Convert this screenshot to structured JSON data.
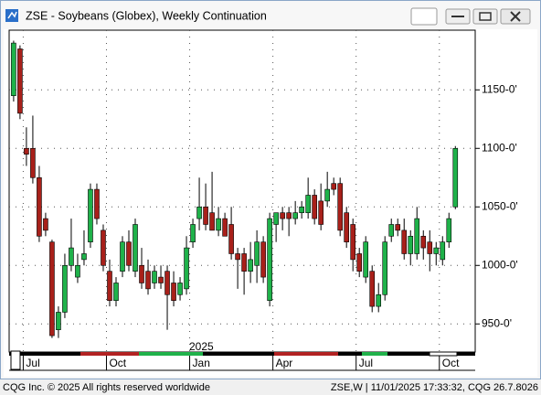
{
  "chart_data": {
    "type": "candlestick",
    "title": "ZSE - Soybeans (Globex), Weekly Continuation",
    "year_label": "2025",
    "footer_left": "CQG Inc. © 2025 All rights reserved worldwide",
    "footer_right": "ZSE,W | 11/01/2025 17:33:32, CQG 26.7.8026",
    "up_color": "#1fb24a",
    "down_color": "#a8201a",
    "open": [
      1145,
      1185,
      1100,
      1100,
      1075,
      1040,
      1020,
      945,
      960,
      1000,
      990,
      1005,
      1020,
      1065,
      1030,
      995,
      970,
      995,
      1020,
      995,
      1000,
      995,
      985,
      990,
      995,
      985,
      975,
      980,
      1020,
      1040,
      1050,
      1045,
      1030,
      1040,
      1035,
      1010,
      1010,
      995,
      1000,
      1020,
      970,
      1035,
      1045,
      1045,
      1040,
      1045,
      1045,
      1060,
      1055,
      1055,
      1070,
      1070,
      1045,
      1035,
      1010,
      990,
      995,
      965,
      975,
      1025,
      1035,
      1030,
      1010,
      1010,
      1025,
      1020,
      1010,
      1005,
      1020,
      1050
    ],
    "high": [
      1192,
      1188,
      1118,
      1128,
      1085,
      1045,
      1022,
      965,
      1010,
      1040,
      1010,
      1030,
      1070,
      1070,
      1035,
      1005,
      990,
      1025,
      1030,
      1040,
      1015,
      1005,
      1000,
      1000,
      1000,
      995,
      990,
      1025,
      1040,
      1075,
      1070,
      1080,
      1050,
      1045,
      1050,
      1015,
      1015,
      1020,
      1030,
      1025,
      1045,
      1045,
      1050,
      1050,
      1055,
      1055,
      1075,
      1065,
      1070,
      1080,
      1075,
      1075,
      1050,
      1040,
      1015,
      1025,
      1000,
      985,
      1025,
      1040,
      1040,
      1040,
      1030,
      1050,
      1030,
      1030,
      1020,
      1025,
      1045,
      1102
    ],
    "low": [
      1140,
      1125,
      1085,
      1070,
      1020,
      1025,
      938,
      938,
      955,
      995,
      985,
      1000,
      1015,
      1035,
      995,
      965,
      965,
      990,
      995,
      990,
      980,
      975,
      980,
      980,
      945,
      965,
      970,
      975,
      1015,
      1030,
      1030,
      1030,
      1025,
      1025,
      1005,
      980,
      975,
      985,
      985,
      985,
      965,
      1020,
      1030,
      1025,
      1035,
      1040,
      1040,
      1035,
      1030,
      1050,
      1060,
      1025,
      1015,
      995,
      990,
      985,
      960,
      960,
      970,
      1020,
      1025,
      1005,
      1000,
      1005,
      1005,
      995,
      1000,
      1000,
      1015,
      1048
    ],
    "close": [
      1190,
      1130,
      1095,
      1075,
      1025,
      1030,
      940,
      960,
      1000,
      1015,
      1000,
      1010,
      1065,
      1040,
      1000,
      970,
      985,
      1020,
      1000,
      1035,
      985,
      980,
      995,
      985,
      975,
      970,
      985,
      1015,
      1035,
      1050,
      1035,
      1030,
      1040,
      1025,
      1010,
      1005,
      995,
      1005,
      1020,
      990,
      1040,
      1045,
      1040,
      1040,
      1045,
      1050,
      1060,
      1040,
      1035,
      1065,
      1065,
      1030,
      1020,
      1005,
      995,
      1020,
      965,
      975,
      1020,
      1035,
      1030,
      1010,
      1025,
      1040,
      1015,
      1010,
      1015,
      1020,
      1040,
      1100
    ],
    "xlim": [
      -0.7,
      72.1
    ],
    "xticks": [
      {
        "value": 1.5,
        "label": "Jul"
      },
      {
        "value": 14.5,
        "label": "Oct"
      },
      {
        "value": 27.5,
        "label": "Jan"
      },
      {
        "value": 40.5,
        "label": "Apr"
      },
      {
        "value": 53.5,
        "label": "Jul"
      },
      {
        "value": 66.5,
        "label": "Oct"
      }
    ],
    "ylim": [
      926,
      1201
    ],
    "yticks": [
      {
        "value": 950,
        "label": "950-0'"
      },
      {
        "value": 1000,
        "label": "1000-0'"
      },
      {
        "value": 1050,
        "label": "1050-0'"
      },
      {
        "value": 1100,
        "label": "1100-0'"
      },
      {
        "value": 1150,
        "label": "1150-0'"
      }
    ],
    "grid": true
  }
}
